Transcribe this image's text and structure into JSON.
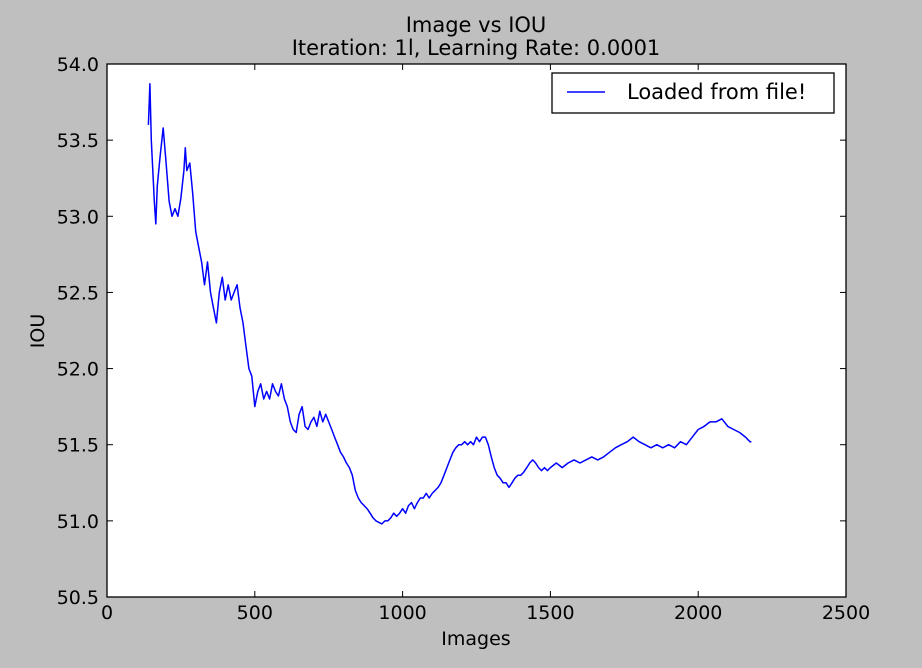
{
  "chart_data": {
    "type": "line",
    "title": "Image vs IOU",
    "subtitle": "Iteration: 1l, Learning Rate: 0.0001",
    "xlabel": "Images",
    "ylabel": "IOU",
    "xlim": [
      0,
      2500
    ],
    "ylim": [
      50.5,
      54.0
    ],
    "x_ticks": [
      "0",
      "500",
      "1000",
      "1500",
      "2000",
      "2500"
    ],
    "y_ticks": [
      "50.5",
      "51.0",
      "51.5",
      "52.0",
      "52.5",
      "53.0",
      "53.5",
      "54.0"
    ],
    "grid": false,
    "legend_position": "top-right",
    "series": [
      {
        "name": "Loaded from file!",
        "color": "#0000ff",
        "points": [
          [
            140,
            53.6
          ],
          [
            145,
            53.87
          ],
          [
            150,
            53.5
          ],
          [
            160,
            53.1
          ],
          [
            165,
            52.95
          ],
          [
            170,
            53.2
          ],
          [
            180,
            53.4
          ],
          [
            190,
            53.58
          ],
          [
            200,
            53.35
          ],
          [
            210,
            53.1
          ],
          [
            220,
            53.0
          ],
          [
            230,
            53.05
          ],
          [
            240,
            53.0
          ],
          [
            250,
            53.12
          ],
          [
            260,
            53.3
          ],
          [
            265,
            53.45
          ],
          [
            270,
            53.3
          ],
          [
            280,
            53.35
          ],
          [
            290,
            53.15
          ],
          [
            300,
            52.9
          ],
          [
            310,
            52.8
          ],
          [
            320,
            52.7
          ],
          [
            330,
            52.55
          ],
          [
            340,
            52.7
          ],
          [
            350,
            52.5
          ],
          [
            360,
            52.4
          ],
          [
            370,
            52.3
          ],
          [
            380,
            52.5
          ],
          [
            390,
            52.6
          ],
          [
            400,
            52.45
          ],
          [
            410,
            52.55
          ],
          [
            420,
            52.45
          ],
          [
            430,
            52.5
          ],
          [
            440,
            52.55
          ],
          [
            450,
            52.4
          ],
          [
            460,
            52.3
          ],
          [
            470,
            52.15
          ],
          [
            480,
            52.0
          ],
          [
            490,
            51.95
          ],
          [
            500,
            51.75
          ],
          [
            510,
            51.85
          ],
          [
            520,
            51.9
          ],
          [
            530,
            51.8
          ],
          [
            540,
            51.85
          ],
          [
            550,
            51.8
          ],
          [
            560,
            51.9
          ],
          [
            570,
            51.85
          ],
          [
            580,
            51.82
          ],
          [
            590,
            51.9
          ],
          [
            600,
            51.8
          ],
          [
            610,
            51.75
          ],
          [
            620,
            51.65
          ],
          [
            630,
            51.6
          ],
          [
            640,
            51.58
          ],
          [
            650,
            51.7
          ],
          [
            660,
            51.75
          ],
          [
            670,
            51.62
          ],
          [
            680,
            51.6
          ],
          [
            690,
            51.65
          ],
          [
            700,
            51.68
          ],
          [
            710,
            51.62
          ],
          [
            720,
            51.72
          ],
          [
            730,
            51.65
          ],
          [
            740,
            51.7
          ],
          [
            750,
            51.65
          ],
          [
            760,
            51.6
          ],
          [
            770,
            51.55
          ],
          [
            780,
            51.5
          ],
          [
            790,
            51.45
          ],
          [
            800,
            51.42
          ],
          [
            810,
            51.38
          ],
          [
            820,
            51.35
          ],
          [
            830,
            51.3
          ],
          [
            840,
            51.2
          ],
          [
            850,
            51.15
          ],
          [
            860,
            51.12
          ],
          [
            870,
            51.1
          ],
          [
            880,
            51.08
          ],
          [
            890,
            51.05
          ],
          [
            900,
            51.02
          ],
          [
            910,
            51.0
          ],
          [
            920,
            50.99
          ],
          [
            930,
            50.98
          ],
          [
            940,
            51.0
          ],
          [
            950,
            51.0
          ],
          [
            960,
            51.02
          ],
          [
            970,
            51.05
          ],
          [
            980,
            51.03
          ],
          [
            990,
            51.05
          ],
          [
            1000,
            51.08
          ],
          [
            1010,
            51.05
          ],
          [
            1020,
            51.1
          ],
          [
            1030,
            51.12
          ],
          [
            1040,
            51.08
          ],
          [
            1050,
            51.12
          ],
          [
            1060,
            51.15
          ],
          [
            1070,
            51.15
          ],
          [
            1080,
            51.18
          ],
          [
            1090,
            51.15
          ],
          [
            1100,
            51.18
          ],
          [
            1110,
            51.2
          ],
          [
            1120,
            51.22
          ],
          [
            1130,
            51.25
          ],
          [
            1140,
            51.3
          ],
          [
            1150,
            51.35
          ],
          [
            1160,
            51.4
          ],
          [
            1170,
            51.45
          ],
          [
            1180,
            51.48
          ],
          [
            1190,
            51.5
          ],
          [
            1200,
            51.5
          ],
          [
            1210,
            51.52
          ],
          [
            1220,
            51.5
          ],
          [
            1230,
            51.52
          ],
          [
            1240,
            51.5
          ],
          [
            1250,
            51.55
          ],
          [
            1260,
            51.52
          ],
          [
            1270,
            51.55
          ],
          [
            1280,
            51.55
          ],
          [
            1290,
            51.5
          ],
          [
            1300,
            51.42
          ],
          [
            1310,
            51.35
          ],
          [
            1320,
            51.3
          ],
          [
            1330,
            51.28
          ],
          [
            1340,
            51.25
          ],
          [
            1350,
            51.25
          ],
          [
            1360,
            51.22
          ],
          [
            1370,
            51.25
          ],
          [
            1380,
            51.28
          ],
          [
            1390,
            51.3
          ],
          [
            1400,
            51.3
          ],
          [
            1410,
            51.32
          ],
          [
            1420,
            51.35
          ],
          [
            1430,
            51.38
          ],
          [
            1440,
            51.4
          ],
          [
            1450,
            51.38
          ],
          [
            1460,
            51.35
          ],
          [
            1470,
            51.33
          ],
          [
            1480,
            51.35
          ],
          [
            1490,
            51.33
          ],
          [
            1500,
            51.35
          ],
          [
            1520,
            51.38
          ],
          [
            1540,
            51.35
          ],
          [
            1560,
            51.38
          ],
          [
            1580,
            51.4
          ],
          [
            1600,
            51.38
          ],
          [
            1620,
            51.4
          ],
          [
            1640,
            51.42
          ],
          [
            1660,
            51.4
          ],
          [
            1680,
            51.42
          ],
          [
            1700,
            51.45
          ],
          [
            1720,
            51.48
          ],
          [
            1740,
            51.5
          ],
          [
            1760,
            51.52
          ],
          [
            1780,
            51.55
          ],
          [
            1800,
            51.52
          ],
          [
            1820,
            51.5
          ],
          [
            1840,
            51.48
          ],
          [
            1860,
            51.5
          ],
          [
            1880,
            51.48
          ],
          [
            1900,
            51.5
          ],
          [
            1920,
            51.48
          ],
          [
            1940,
            51.52
          ],
          [
            1960,
            51.5
          ],
          [
            1980,
            51.55
          ],
          [
            2000,
            51.6
          ],
          [
            2020,
            51.62
          ],
          [
            2040,
            51.65
          ],
          [
            2060,
            51.65
          ],
          [
            2080,
            51.67
          ],
          [
            2100,
            51.62
          ],
          [
            2120,
            51.6
          ],
          [
            2140,
            51.58
          ],
          [
            2160,
            51.55
          ],
          [
            2175,
            51.52
          ],
          [
            2180,
            51.52
          ]
        ]
      }
    ]
  }
}
